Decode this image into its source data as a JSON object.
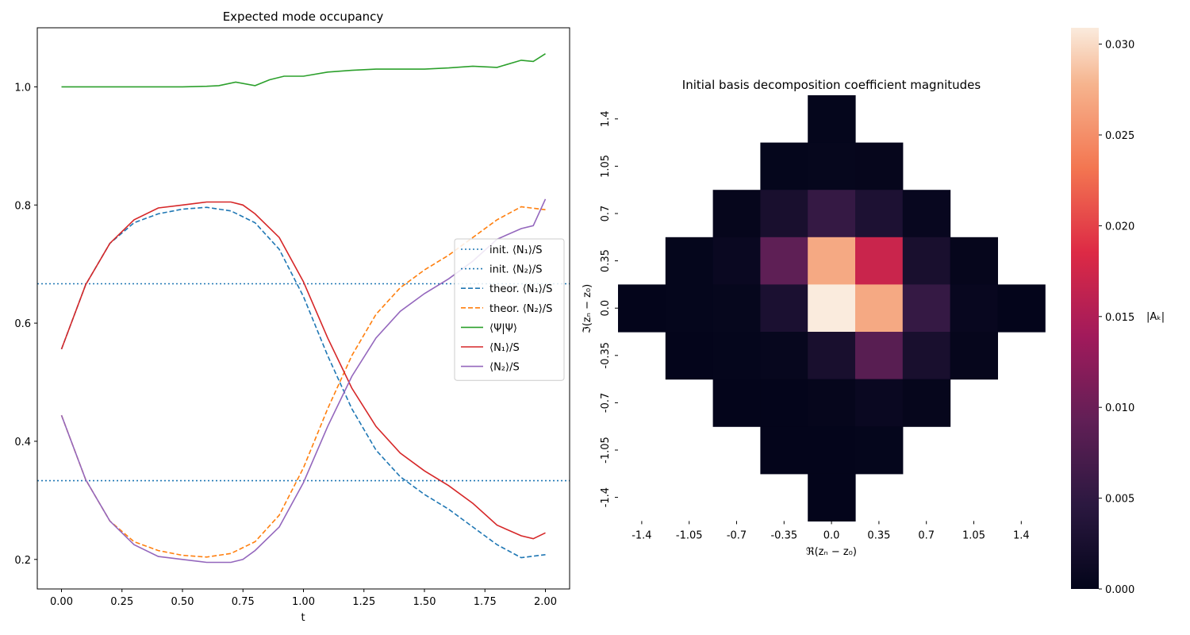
{
  "chart_data": [
    {
      "type": "line",
      "title": "Expected mode occupancy",
      "xlabel": "t",
      "ylabel": "",
      "xlim": [
        -0.1,
        2.1
      ],
      "ylim": [
        0.15,
        1.1
      ],
      "xticks": [
        0.0,
        0.25,
        0.5,
        0.75,
        1.0,
        1.25,
        1.5,
        1.75,
        2.0
      ],
      "xtick_labels": [
        "0.00",
        "0.25",
        "0.50",
        "0.75",
        "1.00",
        "1.25",
        "1.50",
        "1.75",
        "2.00"
      ],
      "yticks": [
        0.2,
        0.4,
        0.6,
        0.8,
        1.0
      ],
      "ytick_labels": [
        "0.2",
        "0.4",
        "0.6",
        "0.8",
        "1.0"
      ],
      "legend_position": "center-right",
      "series": [
        {
          "name": "init. ⟨N₁⟩/S",
          "style": "dotted",
          "color": "#1f77b4",
          "x": [
            -0.1,
            2.1
          ],
          "y": [
            0.6667,
            0.6667
          ]
        },
        {
          "name": "init. ⟨N₂⟩/S",
          "style": "dotted",
          "color": "#1f77b4",
          "x": [
            -0.1,
            2.1
          ],
          "y": [
            0.3333,
            0.3333
          ]
        },
        {
          "name": "theor. ⟨N₁⟩/S",
          "style": "dashed",
          "color": "#1f77b4",
          "x": [
            0,
            0.1,
            0.2,
            0.3,
            0.4,
            0.5,
            0.6,
            0.7,
            0.8,
            0.9,
            1.0,
            1.1,
            1.2,
            1.3,
            1.4,
            1.5,
            1.6,
            1.7,
            1.8,
            1.9,
            2.0
          ],
          "y": [
            0.556,
            0.665,
            0.735,
            0.77,
            0.785,
            0.793,
            0.796,
            0.79,
            0.77,
            0.725,
            0.645,
            0.545,
            0.455,
            0.385,
            0.34,
            0.31,
            0.285,
            0.255,
            0.225,
            0.203,
            0.208
          ]
        },
        {
          "name": "theor. ⟨N₂⟩/S",
          "style": "dashed",
          "color": "#ff7f0e",
          "x": [
            0,
            0.1,
            0.2,
            0.3,
            0.4,
            0.5,
            0.6,
            0.7,
            0.8,
            0.9,
            1.0,
            1.1,
            1.2,
            1.3,
            1.4,
            1.5,
            1.6,
            1.7,
            1.8,
            1.9,
            2.0
          ],
          "y": [
            0.444,
            0.335,
            0.265,
            0.23,
            0.215,
            0.207,
            0.204,
            0.21,
            0.23,
            0.275,
            0.355,
            0.455,
            0.545,
            0.615,
            0.66,
            0.69,
            0.715,
            0.745,
            0.775,
            0.797,
            0.792
          ]
        },
        {
          "name": "⟨Ψ|Ψ⟩",
          "style": "solid",
          "color": "#2ca02c",
          "x": [
            0,
            0.1,
            0.2,
            0.3,
            0.4,
            0.5,
            0.6,
            0.65,
            0.72,
            0.8,
            0.86,
            0.92,
            1.0,
            1.1,
            1.2,
            1.3,
            1.4,
            1.5,
            1.6,
            1.7,
            1.8,
            1.9,
            1.95,
            2.0
          ],
          "y": [
            1.0,
            1.0,
            1.0,
            1.0,
            1.0,
            1.0,
            1.001,
            1.002,
            1.008,
            1.002,
            1.012,
            1.018,
            1.018,
            1.025,
            1.028,
            1.03,
            1.03,
            1.03,
            1.032,
            1.035,
            1.033,
            1.045,
            1.043,
            1.056
          ]
        },
        {
          "name": "⟨N₁⟩/S",
          "style": "solid",
          "color": "#d62728",
          "x": [
            0,
            0.1,
            0.2,
            0.3,
            0.4,
            0.5,
            0.6,
            0.7,
            0.75,
            0.8,
            0.9,
            1.0,
            1.1,
            1.2,
            1.3,
            1.4,
            1.5,
            1.6,
            1.7,
            1.8,
            1.9,
            1.95,
            2.0
          ],
          "y": [
            0.556,
            0.665,
            0.735,
            0.775,
            0.795,
            0.8,
            0.805,
            0.805,
            0.8,
            0.785,
            0.745,
            0.67,
            0.575,
            0.49,
            0.425,
            0.38,
            0.35,
            0.325,
            0.295,
            0.258,
            0.24,
            0.235,
            0.245
          ]
        },
        {
          "name": "⟨N₂⟩/S",
          "style": "solid",
          "color": "#9467bd",
          "x": [
            0,
            0.1,
            0.2,
            0.3,
            0.4,
            0.5,
            0.6,
            0.7,
            0.75,
            0.8,
            0.9,
            1.0,
            1.1,
            1.2,
            1.3,
            1.4,
            1.5,
            1.6,
            1.7,
            1.8,
            1.9,
            1.95,
            2.0
          ],
          "y": [
            0.444,
            0.335,
            0.265,
            0.225,
            0.205,
            0.2,
            0.195,
            0.195,
            0.2,
            0.215,
            0.255,
            0.33,
            0.425,
            0.51,
            0.575,
            0.62,
            0.65,
            0.675,
            0.705,
            0.742,
            0.76,
            0.765,
            0.81
          ]
        }
      ]
    },
    {
      "type": "heatmap",
      "title": "Initial basis decomposition coefficient magnitudes",
      "xlabel": "ℜ(zₙ − z₀)",
      "ylabel": "ℑ(zₙ − z₀)",
      "xtick_labels": [
        "-1.4",
        "-1.05",
        "-0.7",
        "-0.35",
        "0.0",
        "0.35",
        "0.7",
        "1.05",
        "1.4"
      ],
      "ytick_labels": [
        "1.4",
        "1.05",
        "0.7",
        "0.35",
        "0.0",
        "-0.35",
        "-0.7",
        "-1.05",
        "-1.4"
      ],
      "colorbar_label": "|Aₖ|",
      "colorbar_range": [
        0.0,
        0.0309
      ],
      "colorbar_ticks": [
        0.0,
        0.005,
        0.01,
        0.015,
        0.02,
        0.025,
        0.03
      ],
      "colorbar_tick_labels": [
        "0.000",
        "0.005",
        "0.010",
        "0.015",
        "0.020",
        "0.025",
        "0.030"
      ],
      "values": [
        [
          null,
          null,
          null,
          null,
          0.0002,
          null,
          null,
          null,
          null
        ],
        [
          null,
          null,
          null,
          0.0002,
          0.0004,
          0.0003,
          null,
          null,
          null
        ],
        [
          null,
          null,
          0.0003,
          0.0025,
          0.0055,
          0.003,
          0.0006,
          null,
          null
        ],
        [
          null,
          0.0002,
          0.0008,
          0.009,
          0.027,
          0.017,
          0.0025,
          0.0003,
          null
        ],
        [
          0.0001,
          0.0002,
          0.0004,
          0.0028,
          0.0309,
          0.027,
          0.0055,
          0.0006,
          0.0001
        ],
        [
          null,
          0.0001,
          0.0002,
          0.0005,
          0.0025,
          0.0085,
          0.0025,
          0.0003,
          null
        ],
        [
          null,
          null,
          0.0001,
          0.0001,
          0.0003,
          0.0008,
          0.0003,
          null,
          null
        ],
        [
          null,
          null,
          null,
          0.0001,
          0.0001,
          0.0002,
          null,
          null,
          null
        ],
        [
          null,
          null,
          null,
          null,
          0.0001,
          null,
          null,
          null,
          null
        ]
      ]
    }
  ]
}
